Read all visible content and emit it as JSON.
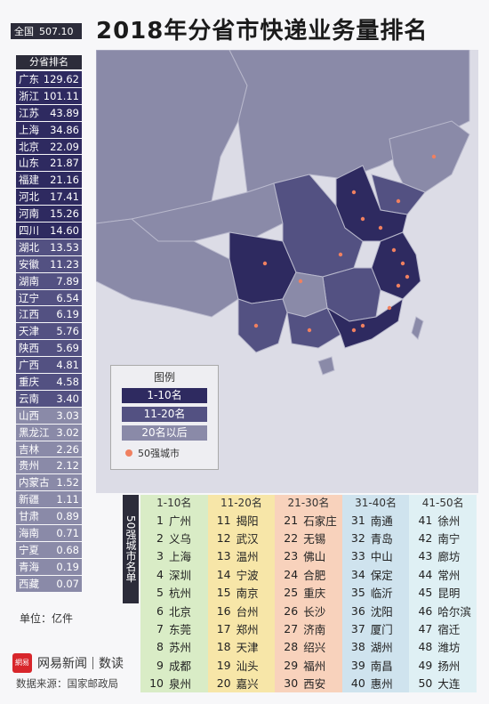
{
  "title": "2018年分省市快递业务量排名",
  "total": {
    "label": "全国",
    "value": "507.10"
  },
  "rank_header": "分省排名",
  "unit": "单位：亿件",
  "chart_data": {
    "type": "table",
    "title": "2018年分省市快递业务量排名",
    "provinces": [
      {
        "name": "广东",
        "value": "129.62",
        "tier": 1
      },
      {
        "name": "浙江",
        "value": "101.11",
        "tier": 1
      },
      {
        "name": "江苏",
        "value": "43.89",
        "tier": 1
      },
      {
        "name": "上海",
        "value": "34.86",
        "tier": 1
      },
      {
        "name": "北京",
        "value": "22.09",
        "tier": 1
      },
      {
        "name": "山东",
        "value": "21.87",
        "tier": 1
      },
      {
        "name": "福建",
        "value": "21.16",
        "tier": 1
      },
      {
        "name": "河北",
        "value": "17.41",
        "tier": 1
      },
      {
        "name": "河南",
        "value": "15.26",
        "tier": 1
      },
      {
        "name": "四川",
        "value": "14.60",
        "tier": 1
      },
      {
        "name": "湖北",
        "value": "13.53",
        "tier": 2
      },
      {
        "name": "安徽",
        "value": "11.23",
        "tier": 2
      },
      {
        "name": "湖南",
        "value": "7.89",
        "tier": 2
      },
      {
        "name": "辽宁",
        "value": "6.54",
        "tier": 2
      },
      {
        "name": "江西",
        "value": "6.19",
        "tier": 2
      },
      {
        "name": "天津",
        "value": "5.76",
        "tier": 2
      },
      {
        "name": "陕西",
        "value": "5.69",
        "tier": 2
      },
      {
        "name": "广西",
        "value": "4.81",
        "tier": 2
      },
      {
        "name": "重庆",
        "value": "4.58",
        "tier": 2
      },
      {
        "name": "云南",
        "value": "3.40",
        "tier": 2
      },
      {
        "name": "山西",
        "value": "3.03",
        "tier": 3
      },
      {
        "name": "黑龙江",
        "value": "3.02",
        "tier": 3
      },
      {
        "name": "吉林",
        "value": "2.26",
        "tier": 3
      },
      {
        "name": "贵州",
        "value": "2.12",
        "tier": 3
      },
      {
        "name": "内蒙古",
        "value": "1.52",
        "tier": 3
      },
      {
        "name": "新疆",
        "value": "1.11",
        "tier": 3
      },
      {
        "name": "甘肃",
        "value": "0.89",
        "tier": 3
      },
      {
        "name": "海南",
        "value": "0.71",
        "tier": 3
      },
      {
        "name": "宁夏",
        "value": "0.68",
        "tier": 3
      },
      {
        "name": "青海",
        "value": "0.19",
        "tier": 3
      },
      {
        "name": "西藏",
        "value": "0.07",
        "tier": 3
      }
    ],
    "legend": {
      "title": "图例",
      "items": [
        {
          "label": "1-10名",
          "color": "#2e2a60"
        },
        {
          "label": "11-20名",
          "color": "#535182"
        },
        {
          "label": "20名以后",
          "color": "#8a8aa8"
        }
      ],
      "dot_label": "50强城市",
      "dot_color": "#f08060"
    },
    "cities_label": "50强城市名单",
    "city_groups": [
      {
        "header": "1-10名",
        "color": "#d9ecc6",
        "cities": [
          {
            "rank": "1",
            "name": "广州"
          },
          {
            "rank": "2",
            "name": "义乌"
          },
          {
            "rank": "3",
            "name": "上海"
          },
          {
            "rank": "4",
            "name": "深圳"
          },
          {
            "rank": "5",
            "name": "杭州"
          },
          {
            "rank": "6",
            "name": "北京"
          },
          {
            "rank": "7",
            "name": "东莞"
          },
          {
            "rank": "8",
            "name": "苏州"
          },
          {
            "rank": "9",
            "name": "成都"
          },
          {
            "rank": "10",
            "name": "泉州"
          }
        ]
      },
      {
        "header": "11-20名",
        "color": "#f7e6a8",
        "cities": [
          {
            "rank": "11",
            "name": "揭阳"
          },
          {
            "rank": "12",
            "name": "武汉"
          },
          {
            "rank": "13",
            "name": "温州"
          },
          {
            "rank": "14",
            "name": "宁波"
          },
          {
            "rank": "15",
            "name": "南京"
          },
          {
            "rank": "16",
            "name": "台州"
          },
          {
            "rank": "17",
            "name": "郑州"
          },
          {
            "rank": "18",
            "name": "天津"
          },
          {
            "rank": "19",
            "name": "汕头"
          },
          {
            "rank": "20",
            "name": "嘉兴"
          }
        ]
      },
      {
        "header": "21-30名",
        "color": "#f8d2bc",
        "cities": [
          {
            "rank": "21",
            "name": "石家庄"
          },
          {
            "rank": "22",
            "name": "无锡"
          },
          {
            "rank": "23",
            "name": "佛山"
          },
          {
            "rank": "24",
            "name": "合肥"
          },
          {
            "rank": "25",
            "name": "重庆"
          },
          {
            "rank": "26",
            "name": "长沙"
          },
          {
            "rank": "27",
            "name": "济南"
          },
          {
            "rank": "28",
            "name": "绍兴"
          },
          {
            "rank": "29",
            "name": "福州"
          },
          {
            "rank": "30",
            "name": "西安"
          }
        ]
      },
      {
        "header": "31-40名",
        "color": "#cfe3ee",
        "cities": [
          {
            "rank": "31",
            "name": "南通"
          },
          {
            "rank": "32",
            "name": "青岛"
          },
          {
            "rank": "33",
            "name": "中山"
          },
          {
            "rank": "34",
            "name": "保定"
          },
          {
            "rank": "35",
            "name": "临沂"
          },
          {
            "rank": "36",
            "name": "沈阳"
          },
          {
            "rank": "37",
            "name": "厦门"
          },
          {
            "rank": "38",
            "name": "湖州"
          },
          {
            "rank": "39",
            "name": "南昌"
          },
          {
            "rank": "40",
            "name": "惠州"
          }
        ]
      },
      {
        "header": "41-50名",
        "color": "#dff0f4",
        "cities": [
          {
            "rank": "41",
            "name": "徐州"
          },
          {
            "rank": "42",
            "name": "南宁"
          },
          {
            "rank": "43",
            "name": "廊坊"
          },
          {
            "rank": "44",
            "name": "常州"
          },
          {
            "rank": "45",
            "name": "昆明"
          },
          {
            "rank": "46",
            "name": "哈尔滨"
          },
          {
            "rank": "47",
            "name": "宿迁"
          },
          {
            "rank": "48",
            "name": "潍坊"
          },
          {
            "rank": "49",
            "name": "扬州"
          },
          {
            "rank": "50",
            "name": "大连"
          }
        ]
      }
    ]
  },
  "branding": {
    "badge": "網易",
    "name": "网易新闻",
    "section": "数读"
  },
  "source": "数据来源：国家邮政局"
}
